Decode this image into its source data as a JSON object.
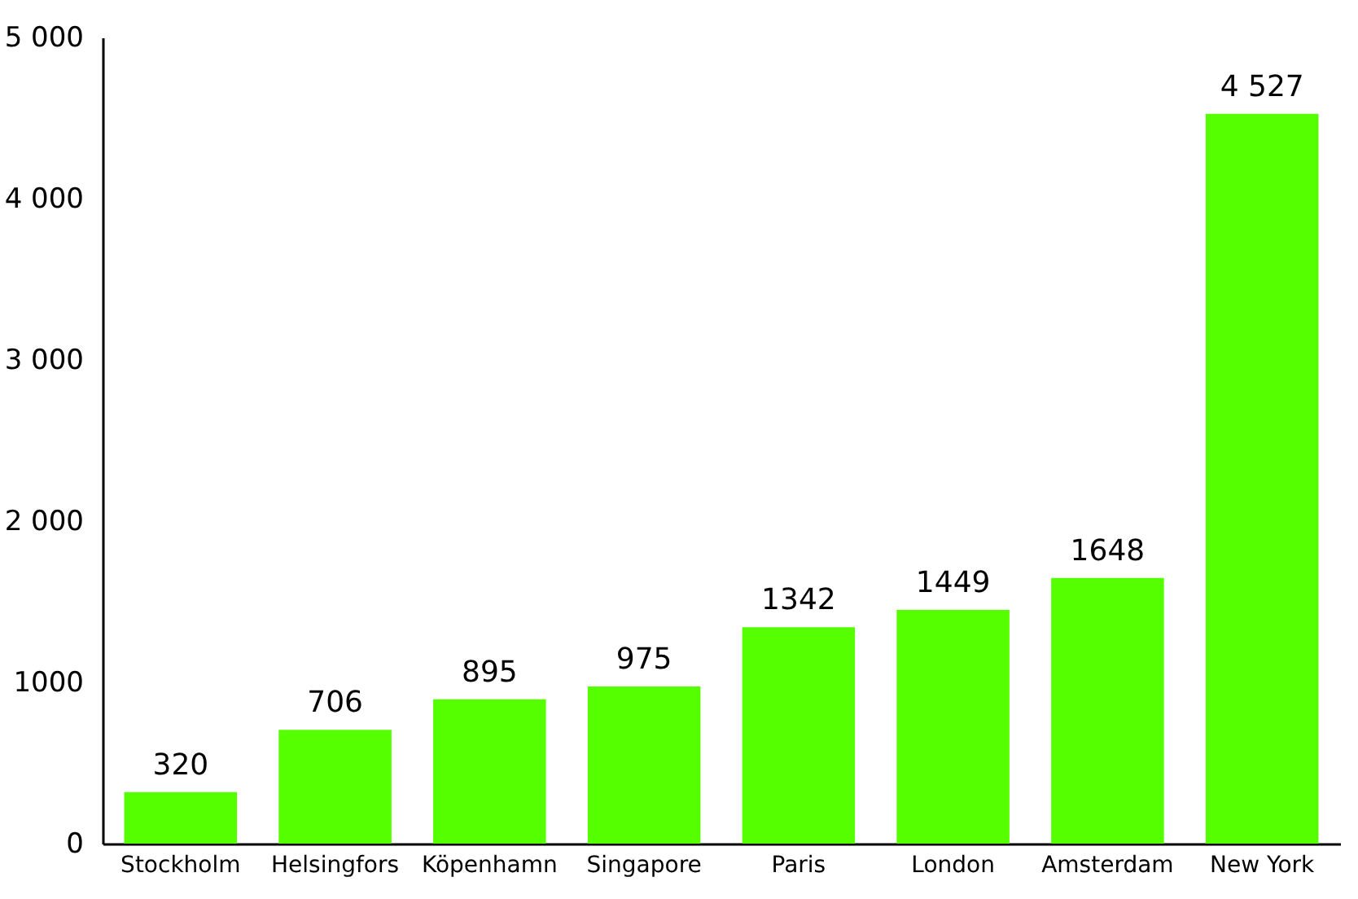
{
  "chart_data": {
    "type": "bar",
    "categories": [
      "Stockholm",
      "Helsingfors",
      "Köpenhamn",
      "Singapore",
      "Paris",
      "London",
      "Amsterdam",
      "New York"
    ],
    "values": [
      320,
      706,
      895,
      975,
      1342,
      1449,
      1648,
      4527
    ],
    "value_labels": [
      "320",
      "706",
      "895",
      "975",
      "1342",
      "1449",
      "1648",
      "4 527"
    ],
    "color": "#55ff00",
    "ylim": [
      0,
      5000
    ],
    "yticks": [
      0,
      {
        "value": 1000,
        "label": "1000"
      },
      {
        "value": 2000,
        "label": "2 000"
      },
      {
        "value": 3000,
        "label": "3 000"
      },
      {
        "value": 4000,
        "label": "4 000"
      },
      {
        "value": 5000,
        "label": "5 000"
      }
    ],
    "grid": false
  }
}
